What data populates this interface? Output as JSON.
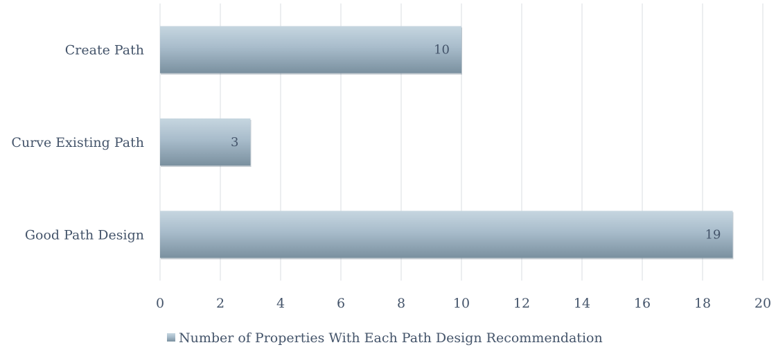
{
  "chart_data": {
    "type": "bar",
    "orientation": "horizontal",
    "categories": [
      "Create Path",
      "Curve Existing Path",
      "Good Path Design"
    ],
    "series": [
      {
        "name": "Number of Properties With Each Path Design Recommendation",
        "values": [
          10,
          3,
          19
        ]
      }
    ],
    "xlim": [
      0,
      20
    ],
    "xticks": [
      0,
      2,
      4,
      6,
      8,
      10,
      12,
      14,
      16,
      18,
      20
    ],
    "data_labels": true,
    "grid": "vertical",
    "legend": "bottom",
    "colors": {
      "bar_top": "#c2d3dd",
      "bar_bottom": "#7d94a3",
      "text": "#44546a",
      "grid": "#d9dde2"
    }
  }
}
